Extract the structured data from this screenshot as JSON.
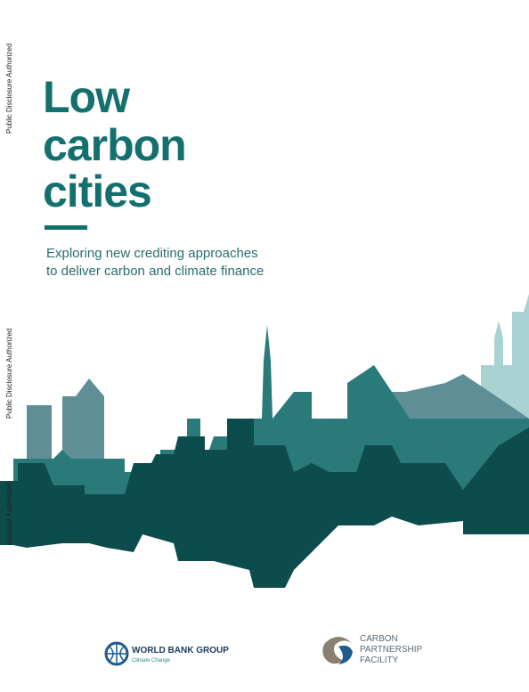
{
  "side_notes": [
    "Public Disclosure Authorized",
    "Public Disclosure Authorized",
    "sclosure Authorized"
  ],
  "title": [
    "Low",
    "carbon",
    "cities"
  ],
  "subtitle": [
    "Exploring new crediting approaches",
    "to deliver carbon and climate finance"
  ],
  "logos": {
    "world_bank": {
      "name": "WORLD BANK GROUP",
      "tagline": "Climate Change"
    },
    "cpf": [
      "CARBON",
      "PARTNERSHIP",
      "FACILITY"
    ]
  }
}
